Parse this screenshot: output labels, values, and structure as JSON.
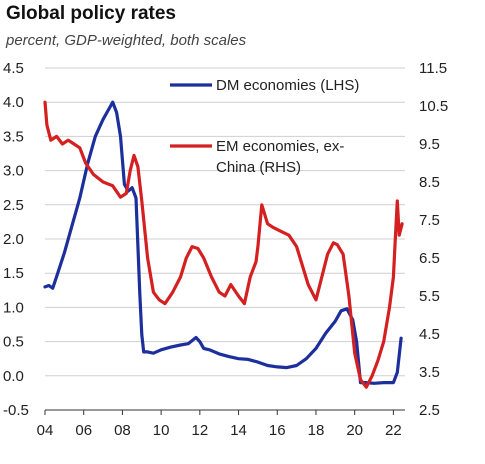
{
  "chart_data": {
    "type": "line",
    "title": "Global policy rates",
    "subtitle": "percent, GDP-weighted, both scales",
    "xlabel": "",
    "ylabel": "",
    "x_ticks": [
      "04",
      "06",
      "08",
      "10",
      "12",
      "14",
      "16",
      "18",
      "20",
      "22"
    ],
    "x_tick_values": [
      2004,
      2006,
      2008,
      2010,
      2012,
      2014,
      2016,
      2018,
      2020,
      2022
    ],
    "xlim": [
      2004,
      2022.6
    ],
    "left_axis": {
      "ylim": [
        -0.5,
        4.5
      ],
      "ticks": [
        "-0.5",
        "0.0",
        "0.5",
        "1.0",
        "1.5",
        "2.0",
        "2.5",
        "3.0",
        "3.5",
        "4.0",
        "4.5"
      ],
      "tick_values": [
        -0.5,
        0,
        0.5,
        1,
        1.5,
        2,
        2.5,
        3,
        3.5,
        4,
        4.5
      ]
    },
    "right_axis": {
      "ylim": [
        2.5,
        11.5
      ],
      "ticks": [
        "2.5",
        "3.5",
        "4.5",
        "5.5",
        "6.5",
        "7.5",
        "8.5",
        "9.5",
        "10.5",
        "11.5"
      ],
      "tick_values": [
        2.5,
        3.5,
        4.5,
        5.5,
        6.5,
        7.5,
        8.5,
        9.5,
        10.5,
        11.5
      ]
    },
    "grid": "horizontal",
    "legend_position": "top-right",
    "series": [
      {
        "name": "DM economies (LHS)",
        "axis": "left",
        "color": "#1c2f9c",
        "x": [
          2004.0,
          2004.2,
          2004.4,
          2004.6,
          2005.0,
          2005.4,
          2005.8,
          2006.2,
          2006.6,
          2007.0,
          2007.3,
          2007.5,
          2007.7,
          2007.9,
          2008.1,
          2008.3,
          2008.5,
          2008.7,
          2008.9,
          2009.0,
          2009.1,
          2009.3,
          2009.6,
          2010.0,
          2010.5,
          2011.0,
          2011.4,
          2011.8,
          2012.0,
          2012.2,
          2012.5,
          2013.0,
          2013.5,
          2014.0,
          2014.5,
          2015.0,
          2015.5,
          2016.0,
          2016.5,
          2017.0,
          2017.5,
          2018.0,
          2018.5,
          2019.0,
          2019.3,
          2019.6,
          2019.9,
          2020.1,
          2020.3,
          2020.6,
          2021.0,
          2021.5,
          2022.0,
          2022.2,
          2022.4
        ],
        "y": [
          1.3,
          1.32,
          1.28,
          1.45,
          1.8,
          2.2,
          2.6,
          3.1,
          3.5,
          3.75,
          3.9,
          4.0,
          3.85,
          3.5,
          2.8,
          2.7,
          2.75,
          2.6,
          1.2,
          0.6,
          0.35,
          0.35,
          0.33,
          0.38,
          0.42,
          0.45,
          0.47,
          0.56,
          0.5,
          0.4,
          0.38,
          0.32,
          0.28,
          0.25,
          0.24,
          0.2,
          0.15,
          0.13,
          0.12,
          0.15,
          0.25,
          0.4,
          0.62,
          0.8,
          0.95,
          0.98,
          0.82,
          0.5,
          -0.1,
          -0.1,
          -0.11,
          -0.1,
          -0.1,
          0.05,
          0.55
        ]
      },
      {
        "name": "EM economies, ex-China (RHS)",
        "axis": "right",
        "color": "#d42020",
        "x": [
          2004.0,
          2004.1,
          2004.3,
          2004.6,
          2004.9,
          2005.2,
          2005.5,
          2005.8,
          2006.1,
          2006.5,
          2007.0,
          2007.5,
          2007.9,
          2008.2,
          2008.4,
          2008.6,
          2008.8,
          2009.0,
          2009.3,
          2009.6,
          2009.9,
          2010.2,
          2010.6,
          2011.0,
          2011.3,
          2011.6,
          2011.9,
          2012.2,
          2012.6,
          2013.0,
          2013.3,
          2013.6,
          2014.0,
          2014.3,
          2014.6,
          2014.9,
          2015.0,
          2015.2,
          2015.5,
          2015.8,
          2016.2,
          2016.6,
          2017.0,
          2017.3,
          2017.6,
          2017.9,
          2018.0,
          2018.3,
          2018.6,
          2018.9,
          2019.1,
          2019.4,
          2019.7,
          2020.0,
          2020.3,
          2020.6,
          2020.9,
          2021.2,
          2021.5,
          2021.8,
          2022.0,
          2022.1,
          2022.2,
          2022.3,
          2022.45
        ],
        "y": [
          10.6,
          10.0,
          9.6,
          9.7,
          9.5,
          9.6,
          9.5,
          9.4,
          9.0,
          8.7,
          8.5,
          8.4,
          8.1,
          8.2,
          8.8,
          9.2,
          8.9,
          8.0,
          6.5,
          5.6,
          5.4,
          5.3,
          5.6,
          6.0,
          6.5,
          6.8,
          6.75,
          6.5,
          6.0,
          5.6,
          5.5,
          5.8,
          5.5,
          5.3,
          6.0,
          6.4,
          6.8,
          7.9,
          7.4,
          7.3,
          7.2,
          7.1,
          6.8,
          6.3,
          5.8,
          5.5,
          5.4,
          6.0,
          6.6,
          6.9,
          6.85,
          6.6,
          5.5,
          4.0,
          3.3,
          3.1,
          3.4,
          3.8,
          4.3,
          5.2,
          6.0,
          7.0,
          8.0,
          7.1,
          7.4
        ]
      }
    ]
  }
}
